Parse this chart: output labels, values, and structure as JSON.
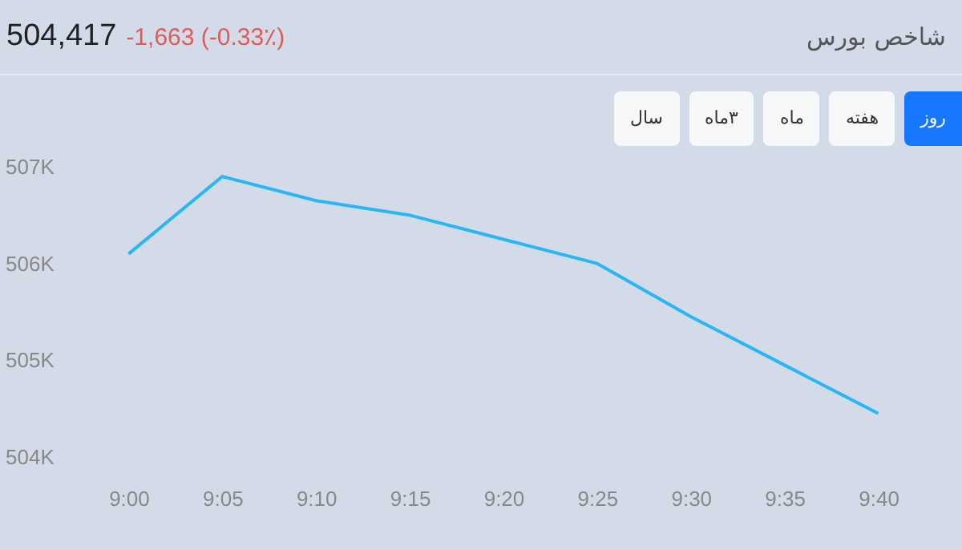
{
  "chart_data": {
    "type": "line",
    "title": "شاخص بورس",
    "annotations": [
      "504,417",
      "-1,663 (-0.33٪)",
      "روز",
      "هفته",
      "ماه",
      "۳ماه",
      "سال"
    ],
    "categories": [
      "9:00",
      "9:05",
      "9:10",
      "9:15",
      "9:20",
      "9:25",
      "9:30",
      "9:35",
      "9:40"
    ],
    "series": [
      {
        "color": "#29b6f6",
        "values": [
          506.1,
          506.9,
          506.65,
          506.5,
          506.25,
          506.0,
          505.45,
          504.95,
          504.45
        ]
      }
    ],
    "ylim": [
      504,
      507
    ],
    "yticks": [
      {
        "value": 504,
        "label": "504K"
      },
      {
        "value": 505,
        "label": "505K"
      },
      {
        "value": 506,
        "label": "506K"
      },
      {
        "value": 507,
        "label": "507K"
      }
    ],
    "grid": false,
    "marker": "none",
    "line_style": "solid"
  }
}
